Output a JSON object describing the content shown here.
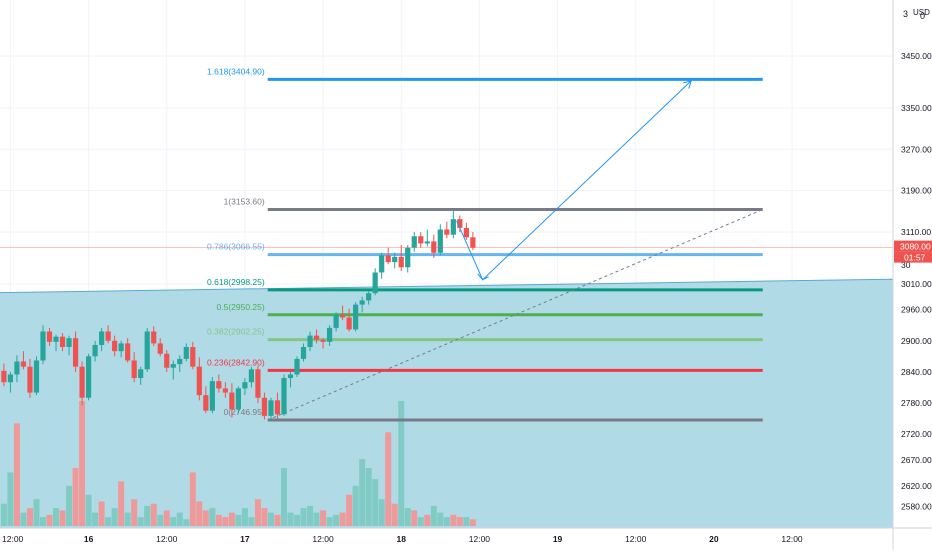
{
  "chart_data": {
    "type": "candlestick",
    "currency_label": "USD",
    "scale_buttons": [
      "3",
      "0"
    ],
    "price_axis": {
      "ylim": [
        2550,
        3510
      ],
      "ticks": [
        3450,
        3350,
        3270,
        3190,
        3110,
        3010,
        2960,
        2900,
        2840,
        2780,
        2720,
        2670,
        2620,
        2580
      ],
      "tick_labels": [
        "3450.00",
        "3350.00",
        "3270.00",
        "3190.00",
        "3110.00",
        "3010.00",
        "2960.00",
        "2900.00",
        "2840.00",
        "2780.00",
        "2720.00",
        "2670.00",
        "2620.00",
        "2580.00"
      ],
      "hidden_partial_label": "30"
    },
    "time_axis": {
      "labels": [
        "12:00",
        "16",
        "12:00",
        "17",
        "12:00",
        "18",
        "12:00",
        "19",
        "12:00",
        "20",
        "12:00"
      ],
      "hour_positions": [
        0,
        12,
        24,
        36,
        48,
        60,
        72,
        84,
        96,
        108,
        120
      ],
      "bold": [
        false,
        true,
        false,
        true,
        false,
        true,
        false,
        true,
        false,
        true,
        false
      ],
      "xlim_hours": [
        -1.6,
        135.5
      ]
    },
    "current_price": {
      "value": 3080.0,
      "label": "3080.00",
      "countdown": "01:57",
      "color": "#ef5350"
    },
    "fibonacci": {
      "x_start_hours": 39.5,
      "x_end_hours": 115.5,
      "levels": [
        {
          "label": "1.618(3404.90)",
          "price": 3404.9,
          "color": "#2196f3"
        },
        {
          "label": "1(3153.60)",
          "price": 3153.6,
          "color": "#787b86"
        },
        {
          "label": "0.786(3066.55)",
          "price": 3066.55,
          "color": "#64b5f6"
        },
        {
          "label": "0.618(2998.25)",
          "price": 2998.25,
          "color": "#089981"
        },
        {
          "label": "0.5(2950.25)",
          "price": 2950.25,
          "color": "#4caf50"
        },
        {
          "label": "0.382(2902.25)",
          "price": 2902.25,
          "color": "#81c784"
        },
        {
          "label": "0.236(2842.90)",
          "price": 2842.9,
          "color": "#f23645"
        },
        {
          "label": "0(2746.95)",
          "price": 2746.95,
          "color": "#787b86"
        }
      ]
    },
    "shaded_area": {
      "color": "#add8e6",
      "left_price": 2993,
      "right_price": 3019,
      "bottom_price": 2550
    },
    "trend_line": {
      "from": [
        39.5,
        2746.95
      ],
      "to": [
        115.5,
        3153.6
      ],
      "color": "#787b86"
    },
    "projection_arrow": {
      "points": [
        [
          68.5,
          3132
        ],
        [
          72.5,
          3018
        ],
        [
          104.5,
          3402
        ]
      ],
      "color": "#2196f3"
    },
    "colors": {
      "up": "#26a69a",
      "down": "#ef5350",
      "vol_up": "#80cbc4",
      "vol_down": "#ef9a9a",
      "grid": "#f0f3fa"
    },
    "candles": [
      [
        -1,
        2842,
        2856,
        2812,
        2820
      ],
      [
        0,
        2820,
        2840,
        2800,
        2835
      ],
      [
        1,
        2835,
        2872,
        2820,
        2860
      ],
      [
        2,
        2860,
        2880,
        2845,
        2850
      ],
      [
        3,
        2850,
        2865,
        2790,
        2800
      ],
      [
        4,
        2800,
        2870,
        2795,
        2862
      ],
      [
        5,
        2862,
        2930,
        2855,
        2918
      ],
      [
        6,
        2918,
        2925,
        2890,
        2898
      ],
      [
        7,
        2898,
        2912,
        2880,
        2908
      ],
      [
        8,
        2908,
        2915,
        2880,
        2888
      ],
      [
        9,
        2888,
        2910,
        2872,
        2905
      ],
      [
        10,
        2905,
        2918,
        2840,
        2850
      ],
      [
        11,
        2850,
        2860,
        2775,
        2790
      ],
      [
        12,
        2790,
        2875,
        2785,
        2870
      ],
      [
        13,
        2870,
        2900,
        2860,
        2892
      ],
      [
        14,
        2892,
        2925,
        2880,
        2918
      ],
      [
        15,
        2918,
        2930,
        2895,
        2900
      ],
      [
        16,
        2900,
        2910,
        2870,
        2880
      ],
      [
        17,
        2880,
        2900,
        2868,
        2895
      ],
      [
        18,
        2895,
        2905,
        2858,
        2862
      ],
      [
        19,
        2862,
        2878,
        2820,
        2828
      ],
      [
        20,
        2828,
        2850,
        2815,
        2845
      ],
      [
        21,
        2845,
        2925,
        2840,
        2918
      ],
      [
        22,
        2918,
        2928,
        2890,
        2895
      ],
      [
        23,
        2895,
        2905,
        2870,
        2875
      ],
      [
        24,
        2875,
        2882,
        2840,
        2848
      ],
      [
        25,
        2848,
        2862,
        2825,
        2855
      ],
      [
        26,
        2855,
        2872,
        2840,
        2865
      ],
      [
        27,
        2865,
        2895,
        2860,
        2888
      ],
      [
        28,
        2888,
        2898,
        2845,
        2850
      ],
      [
        29,
        2850,
        2868,
        2785,
        2795
      ],
      [
        30,
        2795,
        2812,
        2760,
        2765
      ],
      [
        31,
        2765,
        2830,
        2760,
        2822
      ],
      [
        32,
        2822,
        2835,
        2800,
        2808
      ],
      [
        33,
        2808,
        2820,
        2790,
        2800
      ],
      [
        34,
        2800,
        2818,
        2752,
        2768
      ],
      [
        35,
        2768,
        2812,
        2760,
        2808
      ],
      [
        36,
        2808,
        2828,
        2795,
        2820
      ],
      [
        37,
        2820,
        2850,
        2810,
        2845
      ],
      [
        38,
        2845,
        2852,
        2780,
        2790
      ],
      [
        39,
        2790,
        2800,
        2748,
        2755
      ],
      [
        40,
        2755,
        2790,
        2747,
        2785
      ],
      [
        41,
        2785,
        2800,
        2750,
        2758
      ],
      [
        42,
        2758,
        2835,
        2755,
        2828
      ],
      [
        43,
        2828,
        2840,
        2810,
        2835
      ],
      [
        44,
        2835,
        2870,
        2830,
        2865
      ],
      [
        45,
        2865,
        2895,
        2860,
        2888
      ],
      [
        46,
        2888,
        2918,
        2880,
        2910
      ],
      [
        47,
        2910,
        2922,
        2895,
        2902
      ],
      [
        48,
        2902,
        2905,
        2885,
        2898
      ],
      [
        49,
        2898,
        2930,
        2890,
        2925
      ],
      [
        50,
        2925,
        2955,
        2918,
        2950
      ],
      [
        51,
        2950,
        2968,
        2940,
        2945
      ],
      [
        52,
        2945,
        2962,
        2918,
        2922
      ],
      [
        53,
        2922,
        2975,
        2918,
        2970
      ],
      [
        54,
        2970,
        2985,
        2955,
        2978
      ],
      [
        55,
        2978,
        2995,
        2970,
        2992
      ],
      [
        56,
        2992,
        3040,
        2988,
        3032
      ],
      [
        57,
        3032,
        3070,
        3020,
        3065
      ],
      [
        58,
        3065,
        3080,
        3048,
        3052
      ],
      [
        59,
        3052,
        3070,
        3040,
        3062
      ],
      [
        60,
        3062,
        3085,
        3035,
        3042
      ],
      [
        61,
        3042,
        3085,
        3032,
        3080
      ],
      [
        62,
        3080,
        3110,
        3072,
        3102
      ],
      [
        63,
        3102,
        3110,
        3080,
        3088
      ],
      [
        64,
        3088,
        3115,
        3082,
        3092
      ],
      [
        65,
        3092,
        3105,
        3060,
        3070
      ],
      [
        66,
        3070,
        3125,
        3065,
        3115
      ],
      [
        67,
        3115,
        3130,
        3098,
        3105
      ],
      [
        68,
        3105,
        3153,
        3098,
        3135
      ],
      [
        69,
        3135,
        3142,
        3110,
        3118
      ],
      [
        70,
        3118,
        3128,
        3095,
        3100
      ],
      [
        71,
        3100,
        3110,
        3075,
        3080
      ]
    ],
    "volumes": [
      [
        -1,
        50,
        1
      ],
      [
        0,
        120,
        1
      ],
      [
        1,
        230,
        0
      ],
      [
        2,
        30,
        1
      ],
      [
        3,
        40,
        0
      ],
      [
        4,
        60,
        1
      ],
      [
        5,
        20,
        1
      ],
      [
        6,
        25,
        0
      ],
      [
        7,
        40,
        1
      ],
      [
        8,
        35,
        0
      ],
      [
        9,
        90,
        1
      ],
      [
        10,
        130,
        0
      ],
      [
        11,
        280,
        0
      ],
      [
        12,
        70,
        1
      ],
      [
        13,
        30,
        1
      ],
      [
        14,
        55,
        0
      ],
      [
        15,
        20,
        1
      ],
      [
        16,
        40,
        1
      ],
      [
        17,
        100,
        0
      ],
      [
        18,
        30,
        1
      ],
      [
        19,
        60,
        0
      ],
      [
        20,
        20,
        1
      ],
      [
        21,
        45,
        1
      ],
      [
        22,
        50,
        0
      ],
      [
        23,
        25,
        1
      ],
      [
        24,
        35,
        0
      ],
      [
        25,
        20,
        1
      ],
      [
        26,
        30,
        1
      ],
      [
        27,
        15,
        1
      ],
      [
        28,
        120,
        0
      ],
      [
        29,
        55,
        0
      ],
      [
        30,
        35,
        0
      ],
      [
        31,
        40,
        1
      ],
      [
        32,
        25,
        0
      ],
      [
        33,
        20,
        0
      ],
      [
        34,
        30,
        0
      ],
      [
        35,
        25,
        1
      ],
      [
        36,
        40,
        1
      ],
      [
        37,
        20,
        1
      ],
      [
        38,
        60,
        0
      ],
      [
        39,
        40,
        0
      ],
      [
        40,
        30,
        1
      ],
      [
        41,
        25,
        0
      ],
      [
        42,
        130,
        1
      ],
      [
        43,
        30,
        1
      ],
      [
        44,
        25,
        1
      ],
      [
        45,
        40,
        1
      ],
      [
        46,
        45,
        1
      ],
      [
        47,
        30,
        1
      ],
      [
        48,
        35,
        0
      ],
      [
        49,
        20,
        1
      ],
      [
        50,
        25,
        1
      ],
      [
        51,
        30,
        0
      ],
      [
        52,
        70,
        0
      ],
      [
        53,
        90,
        1
      ],
      [
        54,
        150,
        1
      ],
      [
        55,
        130,
        1
      ],
      [
        56,
        105,
        1
      ],
      [
        57,
        60,
        1
      ],
      [
        58,
        210,
        0
      ],
      [
        59,
        50,
        0
      ],
      [
        60,
        280,
        1
      ],
      [
        61,
        40,
        1
      ],
      [
        62,
        35,
        0
      ],
      [
        63,
        20,
        1
      ],
      [
        64,
        25,
        0
      ],
      [
        65,
        45,
        1
      ],
      [
        66,
        30,
        1
      ],
      [
        67,
        20,
        1
      ],
      [
        68,
        25,
        0
      ],
      [
        69,
        20,
        0
      ],
      [
        70,
        20,
        1
      ],
      [
        71,
        15,
        0
      ]
    ]
  }
}
